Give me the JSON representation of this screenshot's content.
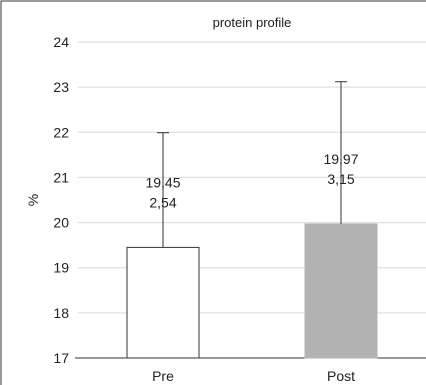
{
  "chart_data": {
    "type": "bar",
    "title": "protein profile",
    "xlabel": "",
    "ylabel": "%",
    "categories": [
      "Pre",
      "Post"
    ],
    "series": [
      {
        "values": [
          19.45,
          19.97
        ],
        "errors": [
          2.54,
          3.15
        ],
        "colors": [
          "#ffffff",
          "#b3b3b3"
        ]
      }
    ],
    "data_labels": [
      {
        "mean": "19,45",
        "sd": "2,54"
      },
      {
        "mean": "19,97",
        "sd": "3,15"
      }
    ],
    "ylim": [
      17,
      24
    ],
    "yticks": [
      17,
      18,
      19,
      20,
      21,
      22,
      23,
      24
    ],
    "grid": true,
    "legend": "none"
  }
}
